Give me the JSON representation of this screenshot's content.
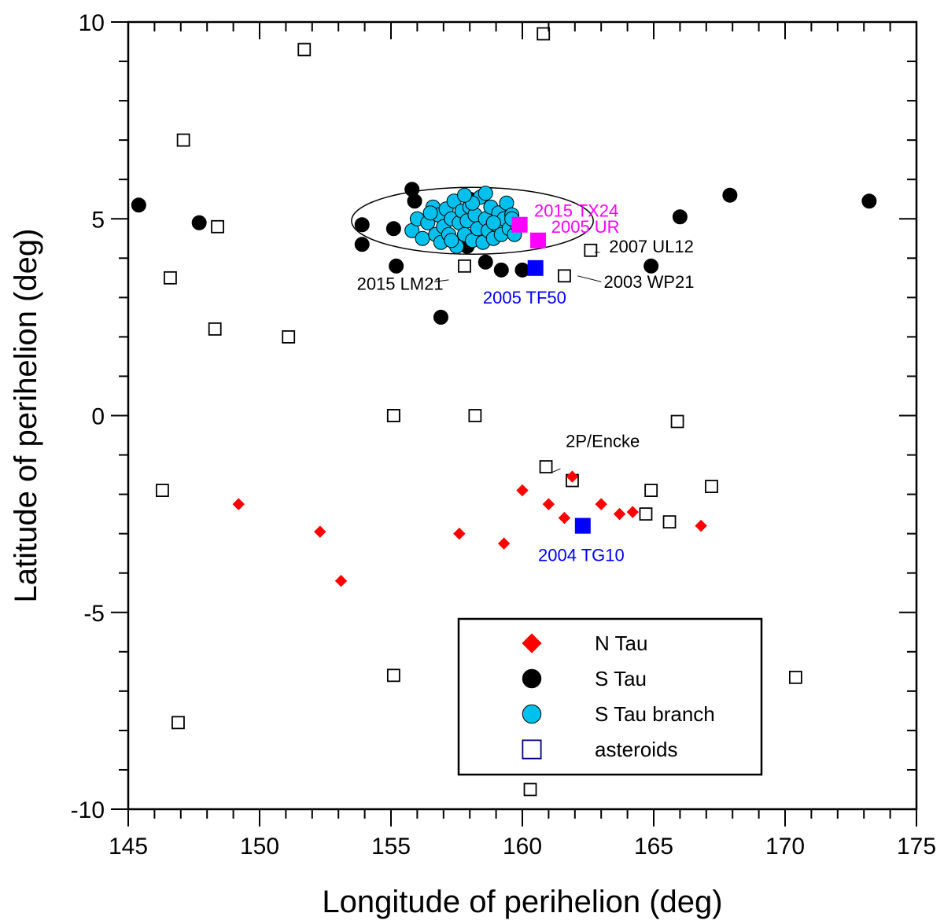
{
  "chart_data": {
    "type": "scatter",
    "xlabel": "Longitude of perihelion (deg)",
    "ylabel": "Latitude of perihelion (deg)",
    "xlim": [
      145,
      175
    ],
    "ylim": [
      -10,
      10
    ],
    "x_ticks": [
      145,
      150,
      155,
      160,
      165,
      170,
      175
    ],
    "y_ticks": [
      -10,
      -5,
      0,
      5,
      10
    ],
    "x_tick_labels": [
      "145",
      "150",
      "155",
      "160",
      "165",
      "170",
      "175"
    ],
    "y_tick_labels": [
      "-10",
      "-5",
      "0",
      "5",
      "10"
    ],
    "grid": false,
    "legend_position": "bottom-right",
    "series": [
      {
        "name": "N Tau",
        "marker": "diamond",
        "color": "#ff0000",
        "x": [
          149.2,
          152.3,
          153.1,
          157.6,
          159.3,
          160.0,
          161.0,
          161.6,
          161.9,
          163.0,
          163.7,
          164.2,
          166.8
        ],
        "y": [
          -2.25,
          -2.95,
          -4.2,
          -3.0,
          -3.25,
          -1.9,
          -2.25,
          -2.6,
          -1.55,
          -2.25,
          -2.5,
          -2.45,
          -2.8
        ]
      },
      {
        "name": "S Tau",
        "marker": "circle",
        "color": "#000000",
        "x": [
          145.4,
          147.7,
          153.9,
          153.9,
          155.1,
          155.2,
          155.8,
          155.9,
          156.9,
          157.9,
          158.0,
          158.6,
          159.2,
          160.0,
          164.9,
          166.0,
          167.9,
          173.2
        ],
        "y": [
          5.35,
          4.9,
          4.85,
          4.35,
          4.75,
          3.8,
          5.75,
          5.45,
          2.5,
          4.3,
          5.5,
          3.9,
          3.7,
          3.7,
          3.8,
          5.05,
          5.6,
          5.45
        ]
      },
      {
        "name": "S Tau branch",
        "marker": "circle",
        "color": "#00c0ee",
        "x": [
          155.8,
          156.0,
          156.2,
          156.4,
          156.6,
          156.7,
          156.8,
          156.9,
          157.0,
          157.1,
          157.2,
          157.3,
          157.4,
          157.5,
          157.6,
          157.7,
          157.8,
          157.9,
          158.0,
          158.1,
          158.2,
          158.3,
          158.4,
          158.5,
          158.6,
          158.7,
          158.8,
          158.9,
          159.0,
          159.1,
          159.2,
          159.3,
          159.4,
          159.5,
          159.6,
          159.7,
          159.8,
          156.5,
          157.3,
          158.1,
          158.9,
          159.6,
          157.8,
          158.6
        ],
        "y": [
          4.7,
          5.0,
          4.5,
          4.9,
          5.3,
          4.6,
          5.1,
          4.4,
          4.8,
          5.25,
          4.6,
          5.0,
          5.45,
          4.3,
          4.9,
          5.2,
          4.6,
          4.95,
          5.3,
          4.45,
          5.1,
          4.75,
          5.55,
          4.4,
          5.0,
          4.7,
          5.3,
          4.5,
          4.85,
          5.15,
          4.6,
          5.0,
          5.4,
          4.75,
          5.1,
          4.6,
          4.85,
          5.15,
          4.45,
          5.4,
          4.9,
          5.0,
          5.6,
          5.65
        ]
      },
      {
        "name": "asteroids",
        "marker": "square-open",
        "color": "#000000",
        "x": [
          146.3,
          146.6,
          146.9,
          147.1,
          148.3,
          148.4,
          151.1,
          151.7,
          155.1,
          155.1,
          155.1,
          157.8,
          158.2,
          160.3,
          160.8,
          160.9,
          161.6,
          161.9,
          162.6,
          164.7,
          164.9,
          165.6,
          165.9,
          167.2,
          170.4
        ],
        "y": [
          -1.9,
          3.5,
          -7.8,
          7.0,
          2.2,
          4.8,
          2.0,
          9.3,
          0.0,
          -6.6,
          0.0,
          3.8,
          0.0,
          -9.5,
          9.7,
          -1.3,
          3.55,
          -1.65,
          4.2,
          -2.5,
          -1.9,
          -2.7,
          -0.15,
          -1.8,
          -6.65
        ]
      },
      {
        "name": "",
        "marker": "square-filled",
        "color": "#ff00ff",
        "x": [
          159.9,
          160.6
        ],
        "y": [
          4.85,
          4.45
        ]
      },
      {
        "name": "",
        "marker": "square-filled",
        "color": "#0000ff",
        "x": [
          160.5,
          162.3
        ],
        "y": [
          3.75,
          -2.8
        ]
      }
    ],
    "ellipse": {
      "cx": 158.1,
      "cy": 4.95,
      "rx": 4.6,
      "ry": 0.85,
      "stroke": "#000000"
    },
    "annotations": [
      {
        "text": "2015 TX24",
        "x": 160.45,
        "y": 5.05,
        "color": "#ff00ff"
      },
      {
        "text": "2005 UR",
        "x": 161.1,
        "y": 4.65,
        "color": "#ff00ff"
      },
      {
        "text": "2007 UL12",
        "x": 163.3,
        "y": 4.15,
        "color": "#000000"
      },
      {
        "text": "2015 LM21",
        "x": 153.7,
        "y": 3.2,
        "color": "#000000"
      },
      {
        "text": "2005 TF50",
        "x": 158.5,
        "y": 2.85,
        "color": "#0000ff"
      },
      {
        "text": "2003 WP21",
        "x": 163.1,
        "y": 3.25,
        "color": "#000000"
      },
      {
        "text": "2P/Encke",
        "x": 161.65,
        "y": -0.8,
        "color": "#000000"
      },
      {
        "text": "2004 TG10",
        "x": 160.6,
        "y": -3.7,
        "color": "#0000ff"
      }
    ],
    "leaders": [
      {
        "x1": 162.95,
        "y1": 4.15,
        "x2": 162.75,
        "y2": 4.15
      },
      {
        "x1": 157.2,
        "y1": 3.45,
        "x2": 156.65,
        "y2": 3.4
      },
      {
        "x1": 162.1,
        "y1": 3.55,
        "x2": 163.0,
        "y2": 3.4
      },
      {
        "x1": 161.45,
        "y1": -1.35,
        "x2": 161.1,
        "y2": -1.45
      }
    ]
  },
  "legend": {
    "items": [
      {
        "label": "N Tau",
        "marker": "diamond",
        "color": "#ff0000"
      },
      {
        "label": "S Tau",
        "marker": "circle",
        "color": "#000000"
      },
      {
        "label": "S Tau branch",
        "marker": "circle",
        "color": "#00c0ee"
      },
      {
        "label": "asteroids",
        "marker": "square-open",
        "color": "#000080"
      }
    ]
  }
}
